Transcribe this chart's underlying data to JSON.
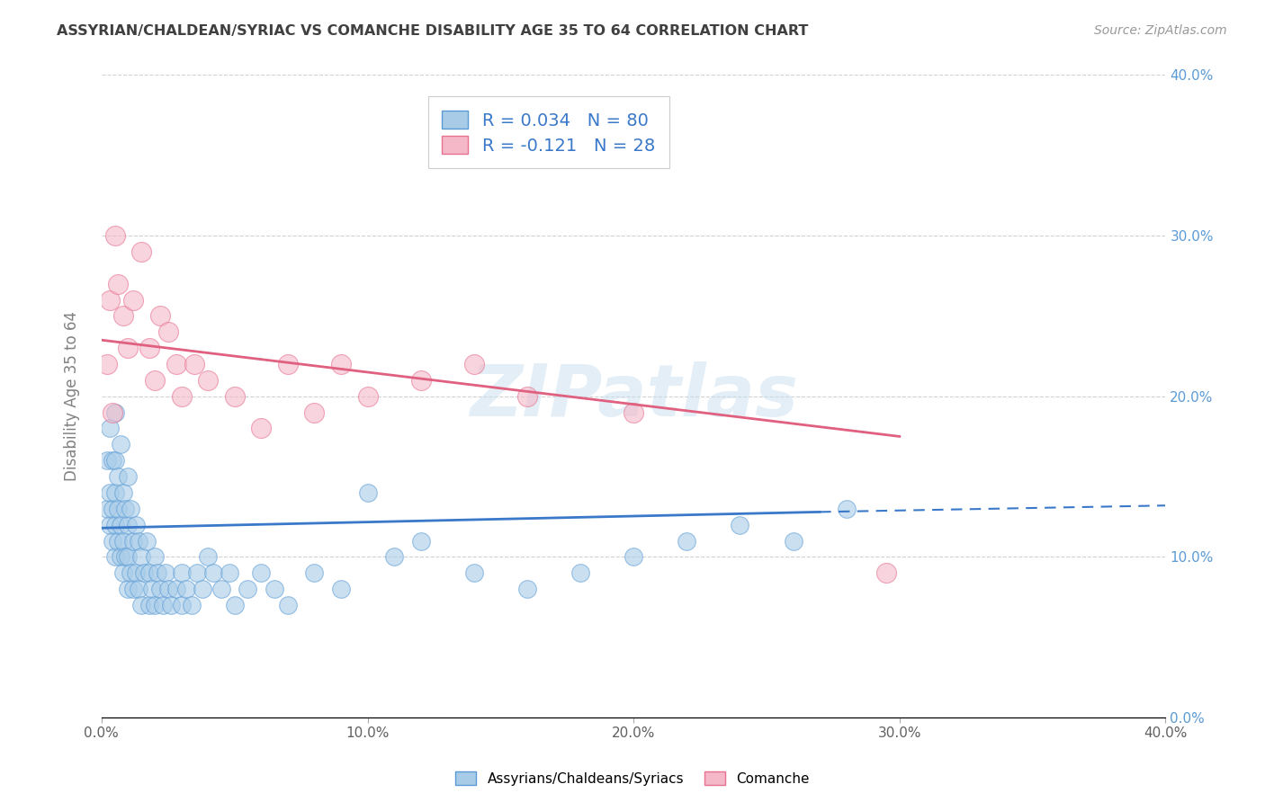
{
  "title": "ASSYRIAN/CHALDEAN/SYRIAC VS COMANCHE DISABILITY AGE 35 TO 64 CORRELATION CHART",
  "source": "Source: ZipAtlas.com",
  "ylabel": "Disability Age 35 to 64",
  "xlim": [
    0.0,
    0.4
  ],
  "ylim": [
    0.0,
    0.4
  ],
  "xticks": [
    0.0,
    0.1,
    0.2,
    0.3,
    0.4
  ],
  "yticks": [
    0.0,
    0.1,
    0.2,
    0.3,
    0.4
  ],
  "xticklabels": [
    "0.0%",
    "10.0%",
    "20.0%",
    "30.0%",
    "40.0%"
  ],
  "yticklabels": [
    "0.0%",
    "10.0%",
    "20.0%",
    "30.0%",
    "40.0%"
  ],
  "blue_color": "#a8cce8",
  "pink_color": "#f4b8c8",
  "blue_edge_color": "#5b9bd5",
  "pink_edge_color": "#e87090",
  "blue_line_color": "#3a78c9",
  "pink_line_color": "#e06080",
  "blue_R": 0.034,
  "blue_N": 80,
  "pink_R": -0.121,
  "pink_N": 28,
  "legend_label_blue": "Assyrians/Chaldeans/Syriacs",
  "legend_label_pink": "Comanche",
  "watermark": "ZIPatlas",
  "blue_scatter_x": [
    0.002,
    0.002,
    0.003,
    0.003,
    0.003,
    0.004,
    0.004,
    0.004,
    0.005,
    0.005,
    0.005,
    0.005,
    0.005,
    0.006,
    0.006,
    0.006,
    0.007,
    0.007,
    0.007,
    0.008,
    0.008,
    0.008,
    0.009,
    0.009,
    0.01,
    0.01,
    0.01,
    0.01,
    0.011,
    0.011,
    0.012,
    0.012,
    0.013,
    0.013,
    0.014,
    0.014,
    0.015,
    0.015,
    0.016,
    0.017,
    0.018,
    0.018,
    0.019,
    0.02,
    0.02,
    0.021,
    0.022,
    0.023,
    0.024,
    0.025,
    0.026,
    0.028,
    0.03,
    0.03,
    0.032,
    0.034,
    0.036,
    0.038,
    0.04,
    0.042,
    0.045,
    0.048,
    0.05,
    0.055,
    0.06,
    0.065,
    0.07,
    0.08,
    0.09,
    0.1,
    0.11,
    0.12,
    0.14,
    0.16,
    0.18,
    0.2,
    0.22,
    0.24,
    0.26,
    0.28
  ],
  "blue_scatter_y": [
    0.13,
    0.16,
    0.12,
    0.14,
    0.18,
    0.11,
    0.13,
    0.16,
    0.1,
    0.12,
    0.14,
    0.16,
    0.19,
    0.11,
    0.13,
    0.15,
    0.1,
    0.12,
    0.17,
    0.09,
    0.11,
    0.14,
    0.1,
    0.13,
    0.08,
    0.1,
    0.12,
    0.15,
    0.09,
    0.13,
    0.08,
    0.11,
    0.09,
    0.12,
    0.08,
    0.11,
    0.07,
    0.1,
    0.09,
    0.11,
    0.07,
    0.09,
    0.08,
    0.07,
    0.1,
    0.09,
    0.08,
    0.07,
    0.09,
    0.08,
    0.07,
    0.08,
    0.07,
    0.09,
    0.08,
    0.07,
    0.09,
    0.08,
    0.1,
    0.09,
    0.08,
    0.09,
    0.07,
    0.08,
    0.09,
    0.08,
    0.07,
    0.09,
    0.08,
    0.14,
    0.1,
    0.11,
    0.09,
    0.08,
    0.09,
    0.1,
    0.11,
    0.12,
    0.11,
    0.13
  ],
  "pink_scatter_x": [
    0.002,
    0.003,
    0.004,
    0.005,
    0.006,
    0.008,
    0.01,
    0.012,
    0.015,
    0.018,
    0.02,
    0.022,
    0.025,
    0.028,
    0.03,
    0.035,
    0.04,
    0.05,
    0.06,
    0.07,
    0.08,
    0.09,
    0.1,
    0.12,
    0.14,
    0.16,
    0.2,
    0.295
  ],
  "pink_scatter_y": [
    0.22,
    0.26,
    0.19,
    0.3,
    0.27,
    0.25,
    0.23,
    0.26,
    0.29,
    0.23,
    0.21,
    0.25,
    0.24,
    0.22,
    0.2,
    0.22,
    0.21,
    0.2,
    0.18,
    0.22,
    0.19,
    0.22,
    0.2,
    0.21,
    0.22,
    0.2,
    0.19,
    0.09
  ],
  "grid_color": "#cccccc",
  "bg_color": "#ffffff",
  "title_color": "#404040",
  "axis_label_color": "#808080",
  "right_tick_color": "#5b9bd5"
}
